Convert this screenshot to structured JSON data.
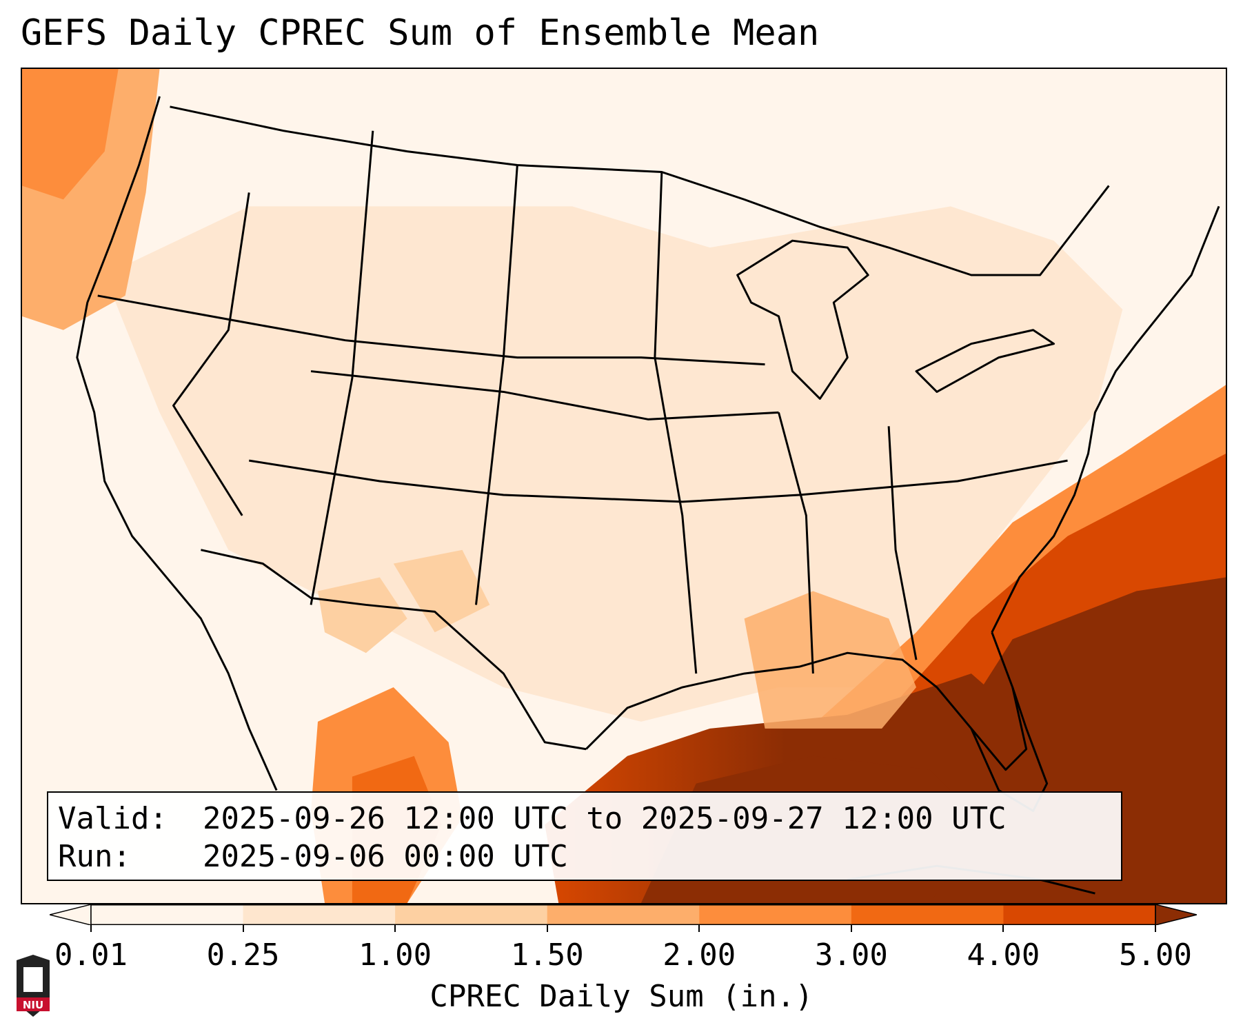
{
  "title": "GEFS Daily CPREC Sum of Ensemble Mean",
  "info": {
    "valid_label": "Valid:",
    "valid_value": "2025-09-26 12:00 UTC to 2025-09-27 12:00 UTC",
    "run_label": "Run:",
    "run_value": "2025-09-06 00:00 UTC"
  },
  "colorbar": {
    "label": "CPREC Daily Sum (in.)",
    "ticks": [
      "0.01",
      "0.25",
      "1.00",
      "1.50",
      "2.00",
      "3.00",
      "4.00",
      "5.00"
    ],
    "colors": [
      "#fff5eb",
      "#fee6ce",
      "#fdd0a2",
      "#fdae6b",
      "#fd8d3c",
      "#f16913",
      "#d94801",
      "#8c2d04"
    ],
    "extend": "both"
  },
  "logo": {
    "text": "NIU"
  }
}
